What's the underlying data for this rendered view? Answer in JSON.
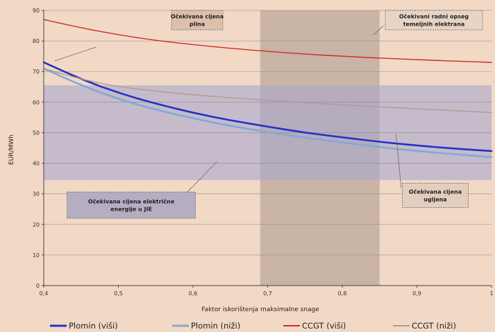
{
  "chart_data": {
    "type": "line",
    "title": "",
    "xlabel": "Faktor iskorištenja maksimalne snage",
    "ylabel": "EUR/MWh",
    "xlim": [
      0.4,
      1.0
    ],
    "ylim": [
      0,
      90
    ],
    "grid": true,
    "legend_position": "bottom",
    "x_ticks": [
      "0,4",
      "0,5",
      "0,6",
      "0,7",
      "0,8",
      "0,9",
      "1"
    ],
    "y_ticks": [
      "0",
      "10",
      "20",
      "30",
      "40",
      "50",
      "60",
      "70",
      "80",
      "90"
    ],
    "x": [
      0.4,
      0.45,
      0.5,
      0.55,
      0.6,
      0.65,
      0.7,
      0.75,
      0.8,
      0.85,
      0.9,
      0.95,
      1.0
    ],
    "series": [
      {
        "name": "Plomin (viši)",
        "color": "#2331c8",
        "values": [
          73,
          67.5,
          63,
          59.5,
          56.5,
          54,
          52,
          50,
          48.5,
          47,
          45.8,
          44.8,
          44
        ]
      },
      {
        "name": "Plomin (niži)",
        "color": "#7faad6",
        "values": [
          71,
          65.5,
          61,
          57.5,
          54.7,
          52.2,
          50.2,
          48.3,
          46.8,
          45.3,
          44,
          43,
          42
        ]
      },
      {
        "name": "CCGT (viši)",
        "color": "#d22a24",
        "values": [
          87,
          84.3,
          82,
          80.2,
          78.8,
          77.6,
          76.6,
          75.7,
          75,
          74.4,
          73.9,
          73.4,
          73
        ]
      },
      {
        "name": "CCGT (niži)",
        "color": "#b39a8e",
        "values": [
          71,
          67.5,
          65,
          63.6,
          62.4,
          61.4,
          60.6,
          59.8,
          59.1,
          58.4,
          57.8,
          57.2,
          56.6
        ]
      }
    ],
    "bands": [
      {
        "kind": "x",
        "from": 0.69,
        "to": 0.85,
        "color": "#c2ad9f"
      },
      {
        "kind": "y",
        "from": 34.5,
        "to": 65.5,
        "color": "#a9a7cf"
      }
    ],
    "annotations": [
      {
        "lines": [
          "Očekivana cijena",
          "plina"
        ],
        "box": "#dcc0ab",
        "pointer_from": [
          0.47,
          78
        ],
        "pointer_to": [
          0.415,
          73.5
        ]
      },
      {
        "lines": [
          "Očekivani radni opseg",
          "temeljnih elektrana"
        ],
        "box": "#e8d4c4",
        "pointer_from": [
          0.855,
          85
        ],
        "pointer_to": [
          0.842,
          82
        ]
      },
      {
        "lines": [
          "Očekivana cijena električne",
          "energije u JIE"
        ],
        "box": "#b5aec3",
        "pointer_from": [
          0.582,
          28
        ],
        "pointer_to": [
          0.632,
          40.5
        ]
      },
      {
        "lines": [
          "Očekivana cijena",
          "ugljena"
        ],
        "box": "#e3cdbf",
        "pointer_from": [
          0.879,
          32
        ],
        "pointer_to": [
          0.872,
          49.5
        ]
      }
    ]
  }
}
